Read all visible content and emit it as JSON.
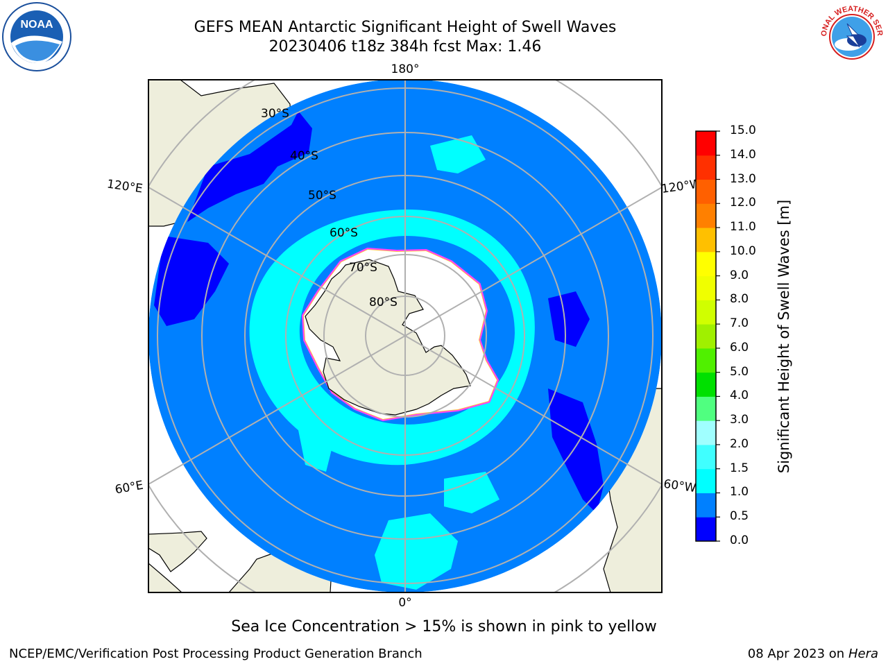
{
  "title": {
    "line1": "GEFS MEAN Antarctic Significant Height of Swell Waves",
    "line2": "20230406 t18z 384h fcst   Max: 1.46"
  },
  "logos": {
    "left": "noaa-logo",
    "right": "national-weather-service-logo",
    "left_text": "NOAA",
    "right_text": "NATIONAL WEATHER SERVICE"
  },
  "map": {
    "projection": "south-polar-stereographic",
    "longitude_labels": {
      "top": "180°",
      "bottom": "0°",
      "left_upper": "120°E",
      "left_lower": "60°E",
      "right_upper": "120°W",
      "right_lower": "60°W"
    },
    "latitude_labels": [
      "30°S",
      "40°S",
      "50°S",
      "60°S",
      "70°S",
      "80°S"
    ],
    "colors": {
      "ocean": "#0080ff",
      "land": "#eeeedc",
      "coast": "#000000",
      "grid": "#b0b0b0"
    }
  },
  "colorbar": {
    "title": "Significant Height of Swell Waves [m]",
    "ticks": [
      "0.0",
      "0.5",
      "1.0",
      "1.5",
      "2.0",
      "3.0",
      "4.0",
      "5.0",
      "6.0",
      "7.0",
      "8.0",
      "9.0",
      "10.0",
      "11.0",
      "12.0",
      "13.0",
      "14.0",
      "15.0"
    ],
    "colors": [
      "#0000ff",
      "#0080ff",
      "#00ffff",
      "#40ffff",
      "#a0ffff",
      "#50ff80",
      "#00e000",
      "#50f000",
      "#a0f000",
      "#d0ff00",
      "#f0ff00",
      "#ffff00",
      "#ffc000",
      "#ff8000",
      "#ff6000",
      "#ff3000",
      "#ff0000"
    ]
  },
  "caption": "Sea Ice Concentration > 15% is shown in pink to yellow",
  "footer": {
    "left": "NCEP/EMC/Verification Post Processing Product Generation Branch",
    "right_prefix": "08 Apr 2023 on ",
    "right_host": "Hera"
  }
}
